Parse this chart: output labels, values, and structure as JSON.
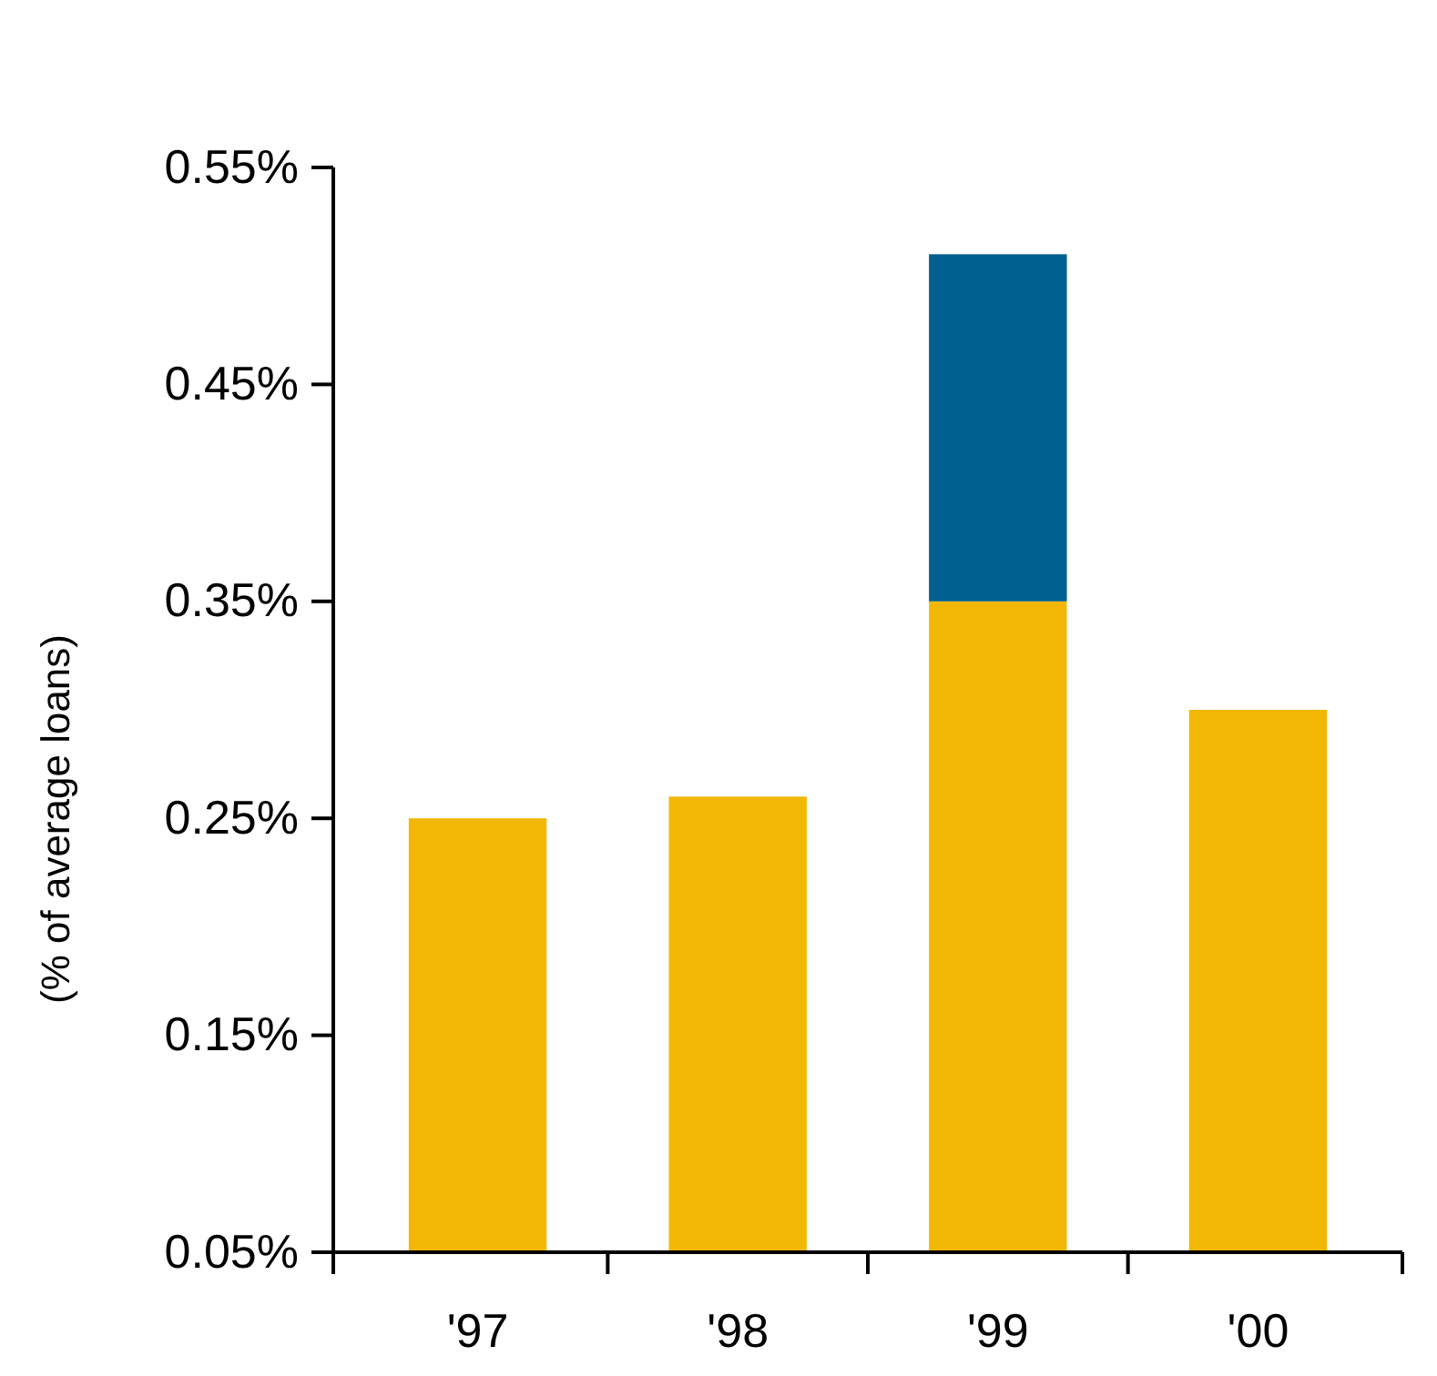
{
  "chart_data": {
    "type": "bar",
    "stacked": true,
    "ylabel": "(% of average loans)",
    "categories": [
      "'97",
      "'98",
      "'99",
      "'00"
    ],
    "series": [
      {
        "color": "#f2b705",
        "values": [
          0.25,
          0.26,
          0.35,
          0.3
        ]
      },
      {
        "color": "#00608f",
        "values": [
          null,
          null,
          0.16,
          null
        ]
      }
    ],
    "ylim": [
      0.05,
      0.55
    ],
    "yticks": [
      {
        "value": 0.05,
        "label": "0.05%"
      },
      {
        "value": 0.15,
        "label": "0.15%"
      },
      {
        "value": 0.25,
        "label": "0.25%"
      },
      {
        "value": 0.35,
        "label": "0.35%"
      },
      {
        "value": 0.45,
        "label": "0.45%"
      },
      {
        "value": 0.55,
        "label": "0.55%"
      }
    ]
  }
}
